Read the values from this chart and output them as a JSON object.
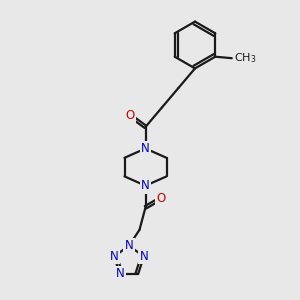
{
  "bg_color": "#e8e8e8",
  "bond_color": "#1a1a1a",
  "N_color": "#0000cc",
  "O_color": "#cc0000",
  "line_width": 1.6,
  "font_size": 8.5,
  "figsize": [
    3.0,
    3.0
  ],
  "dpi": 100,
  "xlim": [
    0,
    10
  ],
  "ylim": [
    0,
    10
  ]
}
